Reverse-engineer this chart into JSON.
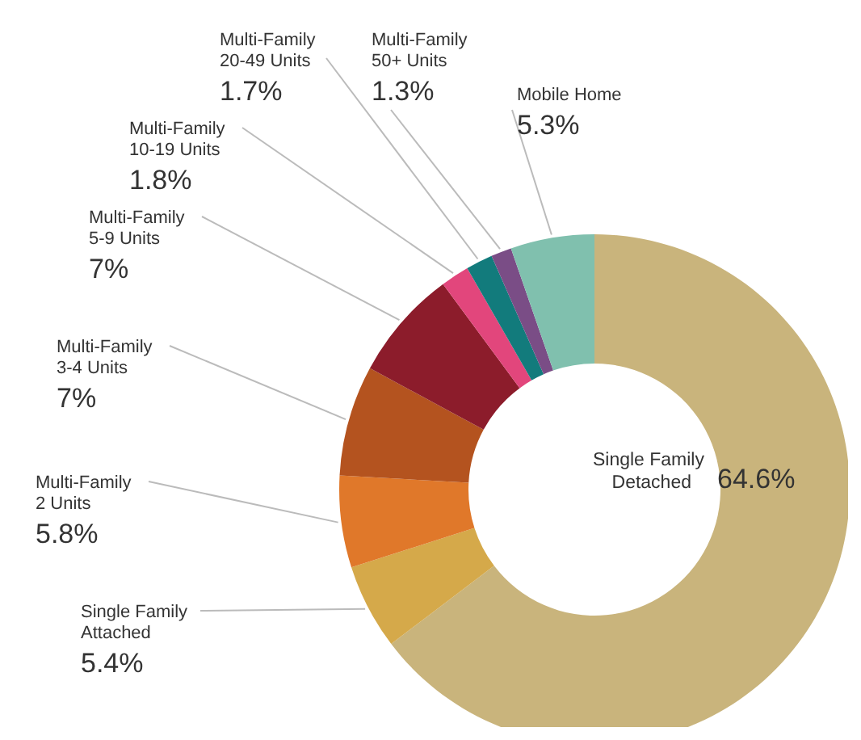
{
  "chart_data": {
    "type": "donut",
    "categories": [
      "Single Family Detached",
      "Single Family Attached",
      "Multi-Family 2 Units",
      "Multi-Family 3-4 Units",
      "Multi-Family 5-9 Units",
      "Multi-Family 10-19 Units",
      "Multi-Family 20-49 Units",
      "Multi-Family 50+ Units",
      "Mobile Home"
    ],
    "values": [
      64.6,
      5.4,
      5.8,
      7,
      7,
      1.8,
      1.7,
      1.3,
      5.3
    ],
    "value_labels": [
      "64.6%",
      "5.4%",
      "5.8%",
      "7%",
      "7%",
      "1.8%",
      "1.7%",
      "1.3%",
      "5.3%"
    ],
    "colors": [
      "#c9b47c",
      "#d5a94a",
      "#e0782a",
      "#b4531f",
      "#8c1c2b",
      "#e2467c",
      "#127b7c",
      "#7a4d86",
      "#80c0ae"
    ]
  }
}
